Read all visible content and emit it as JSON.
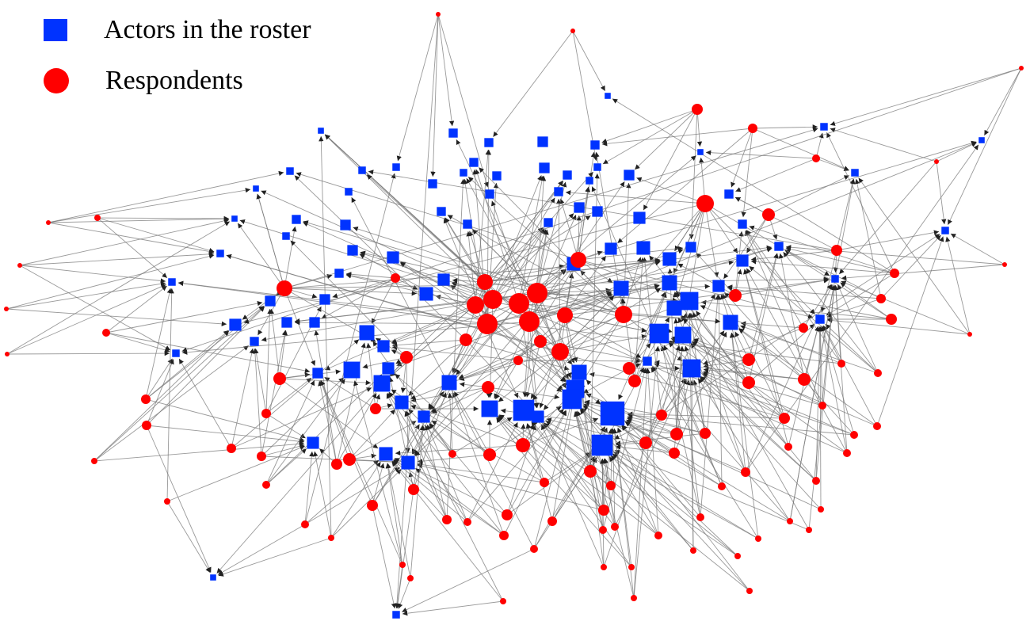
{
  "legend": {
    "roster_label": "Actors in the roster",
    "respondent_label": "Respondents"
  },
  "colors": {
    "roster": "#0033ff",
    "respondent": "#ff0000",
    "edge": "#777777",
    "arrow": "#222222",
    "background": "#ffffff"
  },
  "network": {
    "node_types": [
      "roster-actor",
      "respondent"
    ],
    "directed": true
  }
}
